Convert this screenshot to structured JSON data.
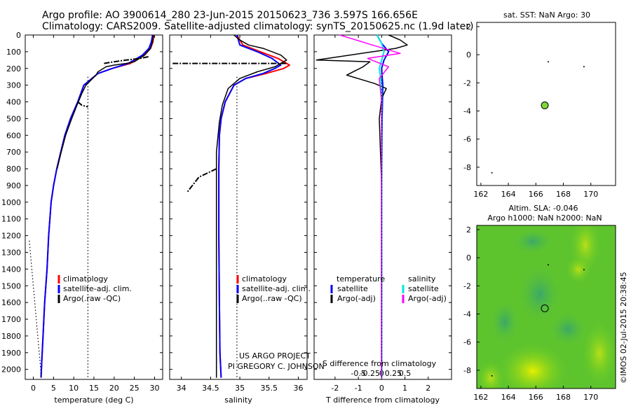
{
  "header": {
    "line1": "Argo profile: AO 3900614_280 23-Jun-2015 20150623_736 3.597S 166.656E",
    "line2": "Climatology: CARS2009. Satellite-adjusted climatology: synTS_20150625.nc (1.9d later)"
  },
  "colors": {
    "climatology": "#ff0000",
    "satellite": "#0000ff",
    "argo": "#000000",
    "sal_satellite": "#00e5e5",
    "sal_argo": "#ff00ff",
    "marker": "#7fd63a"
  },
  "credits": {
    "project": "US ARGO PROJECT",
    "pi": "PI GREGORY C. JOHNSON",
    "stamp": "©IMOS 02-Jul-2015 20:38:45"
  },
  "chart_data": [
    {
      "type": "line",
      "name": "temperature-profile",
      "xlabel": "temperature (deg C)",
      "xticks": [
        0,
        5,
        10,
        15,
        20,
        25,
        30
      ],
      "xlim": [
        -2,
        32
      ],
      "yticks": [
        0,
        100,
        200,
        300,
        400,
        500,
        600,
        700,
        800,
        900,
        1000,
        1100,
        1200,
        1300,
        1400,
        1500,
        1600,
        1700,
        1800,
        1900,
        2000
      ],
      "ylim": [
        2060,
        0
      ],
      "legend": [
        "climatology",
        "satellite-adj. clim.",
        "Argo(.raw -QC)"
      ],
      "series": [
        {
          "name": "climatology",
          "x": [
            29.8,
            29.6,
            29.0,
            27.5,
            24.0,
            19.5,
            16.0,
            12.5,
            11.0,
            9.2,
            7.8,
            6.8,
            5.8,
            5.0,
            4.4,
            3.8,
            3.4,
            2.8,
            2.4,
            2.1,
            1.9
          ],
          "y": [
            0,
            40,
            80,
            120,
            170,
            200,
            230,
            300,
            400,
            500,
            600,
            700,
            800,
            900,
            1000,
            1200,
            1400,
            1600,
            1800,
            1950,
            2050
          ]
        },
        {
          "name": "satellite",
          "x": [
            29.5,
            29.2,
            28.6,
            27.0,
            23.5,
            19.5,
            16.0,
            12.5,
            11.0,
            9.2,
            7.8,
            6.8,
            5.8,
            5.0,
            4.4,
            3.8,
            3.4,
            2.8,
            2.4,
            2.1,
            1.9
          ],
          "y": [
            0,
            40,
            80,
            120,
            170,
            200,
            230,
            300,
            400,
            500,
            600,
            700,
            800,
            900,
            1000,
            1200,
            1400,
            1600,
            1800,
            1950,
            2050
          ]
        },
        {
          "name": "argo",
          "x": [
            29.7,
            29.5,
            29.0,
            27.5,
            25.0,
            23.0,
            20.0,
            18.0,
            16.0,
            15.5,
            13.0,
            12.0,
            10.8,
            9.5,
            8.0,
            6.9,
            5.9
          ],
          "y": [
            0,
            40,
            80,
            120,
            160,
            170,
            180,
            190,
            220,
            240,
            300,
            350,
            420,
            500,
            600,
            700,
            800
          ]
        },
        {
          "name": "argo-flagged",
          "x": [
            17.5,
            20.0,
            23.0,
            26.5,
            28.5
          ],
          "y": [
            170,
            160,
            150,
            140,
            130
          ]
        },
        {
          "name": "argo-flagged-2",
          "x": [
            11.0,
            12.0,
            13.5
          ],
          "y": [
            400,
            420,
            430
          ]
        },
        {
          "name": "threshold",
          "x": [
            13.5,
            13.5
          ],
          "y": [
            250,
            2050
          ]
        },
        {
          "name": "min-bound",
          "x": [
            -1.0,
            2.0
          ],
          "y": [
            1230,
            2050
          ]
        }
      ]
    },
    {
      "type": "line",
      "name": "salinity-profile",
      "xlabel": "salinity",
      "xticks": [
        34,
        34.5,
        35,
        35.5,
        36
      ],
      "xlim": [
        33.8,
        36.15
      ],
      "ylim": [
        2060,
        0
      ],
      "legend": [
        "climatology",
        "satellite-adj. clim.",
        "Argo(..raw -QC)"
      ],
      "series": [
        {
          "name": "climatology",
          "x": [
            34.95,
            35.05,
            35.35,
            35.65,
            35.85,
            35.75,
            35.45,
            35.1,
            34.9,
            34.75,
            34.68,
            34.65,
            34.64,
            34.64,
            34.65,
            34.66,
            34.68
          ],
          "y": [
            0,
            60,
            100,
            140,
            180,
            200,
            230,
            260,
            300,
            400,
            500,
            600,
            800,
            1200,
            1600,
            1900,
            2050
          ]
        },
        {
          "name": "satellite",
          "x": [
            34.95,
            35.0,
            35.3,
            35.55,
            35.7,
            35.6,
            35.4,
            35.1,
            34.9,
            34.75,
            34.68,
            34.65,
            34.64,
            34.64,
            34.65,
            34.66,
            34.68
          ],
          "y": [
            0,
            60,
            100,
            140,
            180,
            200,
            230,
            260,
            300,
            400,
            500,
            600,
            800,
            1200,
            1600,
            1900,
            2050
          ]
        },
        {
          "name": "argo",
          "x": [
            34.9,
            35.0,
            35.15,
            35.4,
            35.7,
            35.8,
            35.6,
            35.3,
            35.0,
            34.8,
            34.7,
            34.65,
            34.6,
            34.6
          ],
          "y": [
            0,
            30,
            60,
            80,
            120,
            150,
            190,
            220,
            260,
            320,
            420,
            520,
            700,
            2050
          ]
        },
        {
          "name": "argo-flagged",
          "x": [
            33.85,
            34.5,
            35.8
          ],
          "y": [
            170,
            170,
            170
          ]
        },
        {
          "name": "argo-flagged-2",
          "x": [
            34.6,
            34.3,
            34.1
          ],
          "y": [
            800,
            850,
            940
          ]
        },
        {
          "name": "threshold",
          "x": [
            34.95,
            34.95
          ],
          "y": [
            250,
            2050
          ]
        }
      ]
    },
    {
      "type": "line",
      "name": "difference-profile",
      "xlabel": "T difference from climatology",
      "xlabel2": "S difference from climatology",
      "xticks": [
        -2,
        -1,
        0,
        1,
        2
      ],
      "xticks2": [
        "-0.5",
        "-0.25",
        "0",
        "0.25",
        "0.5"
      ],
      "xlim": [
        -2.9,
        3.0
      ],
      "ylim": [
        2060,
        0
      ],
      "legend": {
        "temperature": "temperature",
        "salinity": "salinity",
        "t_sat": "satellite",
        "t_argo": "Argo(-adj)",
        "s_sat": "satellite",
        "s_argo": "Argo(-adj)"
      },
      "series": [
        {
          "name": "t-satellite",
          "x": [
            -0.2,
            0.0,
            0.3,
            0.1,
            0.0,
            0.05,
            0.02,
            0.0,
            0.0,
            0.0
          ],
          "y": [
            0,
            50,
            100,
            150,
            200,
            300,
            500,
            900,
            1500,
            2050
          ]
        },
        {
          "name": "t-argo",
          "x": [
            0.3,
            0.8,
            1.1,
            0.6,
            -2.8,
            -0.5,
            -0.8,
            -1.5,
            -0.3,
            0.2,
            0.0,
            -0.1,
            0.0,
            0.0
          ],
          "y": [
            0,
            30,
            60,
            80,
            150,
            160,
            190,
            240,
            290,
            320,
            380,
            500,
            900,
            2050
          ]
        },
        {
          "name": "s-satellite",
          "x": [
            -0.2,
            0.0,
            0.1,
            -0.1,
            0.0,
            0.0,
            0.0
          ],
          "y": [
            0,
            50,
            100,
            200,
            300,
            900,
            2050
          ]
        },
        {
          "name": "s-argo",
          "x": [
            -1.8,
            -0.4,
            0.8,
            -0.6,
            0.3,
            -0.1,
            0.0,
            0.0
          ],
          "y": [
            0,
            60,
            110,
            140,
            190,
            260,
            400,
            2050
          ]
        }
      ]
    },
    {
      "type": "scatter",
      "name": "sst-map",
      "title": "sat. SST: NaN Argo: 30",
      "xticks": [
        162,
        164,
        166,
        168,
        170
      ],
      "yticks": [
        2,
        0,
        -2,
        -4,
        -6,
        -8
      ],
      "xlim": [
        161.7,
        171.8
      ],
      "ylim": [
        -9.3,
        2.3
      ],
      "points": [
        {
          "x": 166.65,
          "y": -3.6,
          "kind": "profile"
        },
        {
          "x": 166.9,
          "y": -0.5,
          "kind": "dot"
        },
        {
          "x": 169.5,
          "y": -0.85,
          "kind": "dot"
        },
        {
          "x": 162.8,
          "y": -8.4,
          "kind": "dot"
        }
      ]
    },
    {
      "type": "heatmap",
      "name": "sla-map",
      "title": "Altim. SLA: -0.046",
      "subtitle": "Argo h1000: NaN h2000: NaN",
      "xticks": [
        162,
        164,
        166,
        168,
        170
      ],
      "yticks": [
        2,
        0,
        -2,
        -4,
        -6,
        -8
      ],
      "xlim": [
        161.7,
        171.8
      ],
      "ylim": [
        -9.3,
        2.3
      ],
      "points": [
        {
          "x": 166.65,
          "y": -3.6,
          "kind": "profile"
        },
        {
          "x": 166.9,
          "y": -0.5,
          "kind": "dot"
        },
        {
          "x": 169.5,
          "y": -0.85,
          "kind": "dot"
        },
        {
          "x": 162.8,
          "y": -8.4,
          "kind": "dot"
        }
      ]
    }
  ]
}
